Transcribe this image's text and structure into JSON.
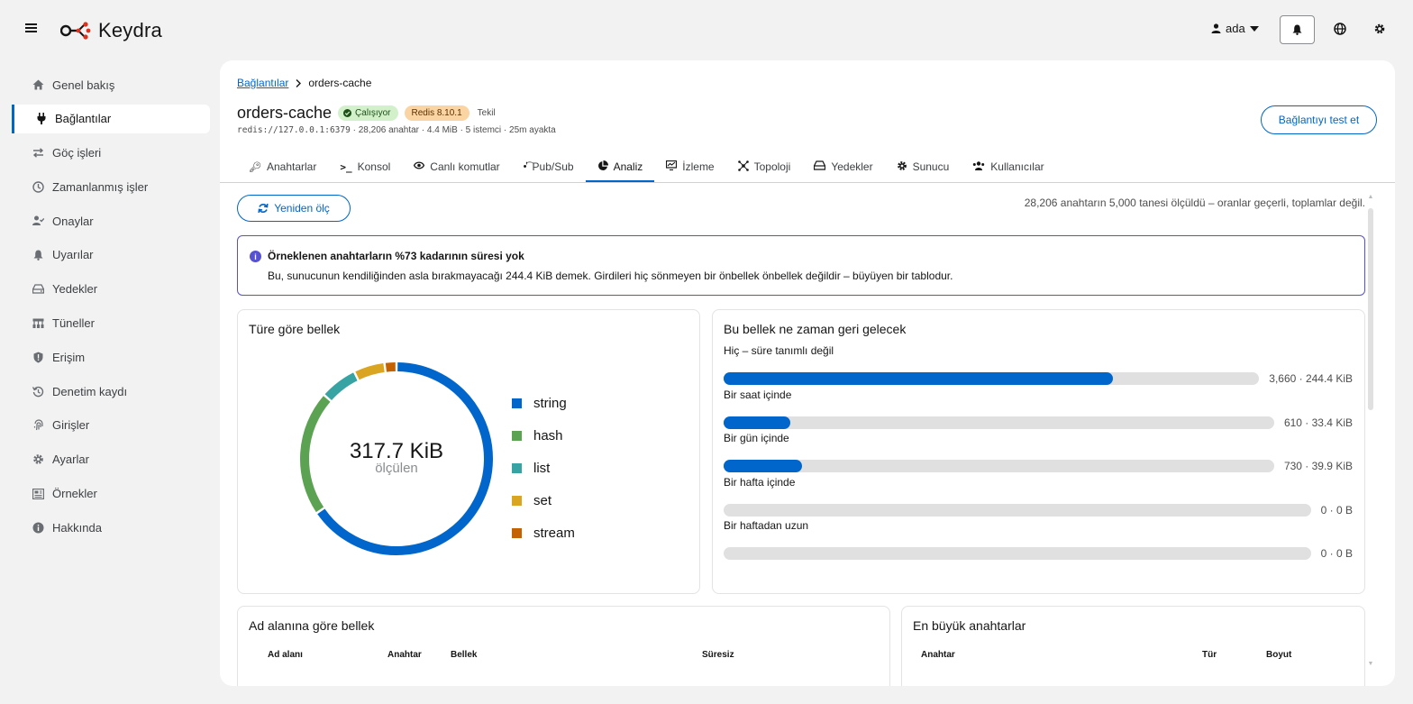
{
  "app": {
    "name": "Keydra"
  },
  "header": {
    "user": "ada"
  },
  "sidebar": {
    "items": [
      {
        "label": "Genel bakış",
        "icon": "home-icon"
      },
      {
        "label": "Bağlantılar",
        "icon": "plug-icon",
        "active": true
      },
      {
        "label": "Göç işleri",
        "icon": "exchange-icon"
      },
      {
        "label": "Zamanlanmış işler",
        "icon": "clock-icon"
      },
      {
        "label": "Onaylar",
        "icon": "user-check-icon"
      },
      {
        "label": "Uyarılar",
        "icon": "bell-icon"
      },
      {
        "label": "Yedekler",
        "icon": "hdd-icon"
      },
      {
        "label": "Tüneller",
        "icon": "network-icon"
      },
      {
        "label": "Erişim",
        "icon": "shield-icon"
      },
      {
        "label": "Denetim kaydı",
        "icon": "history-icon"
      },
      {
        "label": "Girişler",
        "icon": "fingerprint-icon"
      },
      {
        "label": "Ayarlar",
        "icon": "gear-icon"
      },
      {
        "label": "Örnekler",
        "icon": "newspaper-icon"
      },
      {
        "label": "Hakkında",
        "icon": "info-icon"
      }
    ]
  },
  "breadcrumb": {
    "parent": "Bağlantılar",
    "current": "orders-cache"
  },
  "connection": {
    "name": "orders-cache",
    "status": "Çalışıyor",
    "version": "Redis 8.10.1",
    "mode": "Tekil",
    "url": "redis://127.0.0.1:6379",
    "meta": " · 28,206 anahtar · 4.4 MiB · 5 istemci · 25m ayakta",
    "test_button": "Bağlantıyı test et"
  },
  "tabs": [
    {
      "label": "Anahtarlar",
      "icon": "key-icon"
    },
    {
      "label": "Konsol",
      "icon": "terminal-icon"
    },
    {
      "label": "Canlı komutlar",
      "icon": "eye-icon"
    },
    {
      "label": "Pub/Sub",
      "icon": "broadcast-icon"
    },
    {
      "label": "Analiz",
      "icon": "pie-icon",
      "active": true
    },
    {
      "label": "İzleme",
      "icon": "monitor-icon"
    },
    {
      "label": "Topoloji",
      "icon": "topology-icon"
    },
    {
      "label": "Yedekler",
      "icon": "hdd-icon"
    },
    {
      "label": "Sunucu",
      "icon": "gear-icon"
    },
    {
      "label": "Kullanıcılar",
      "icon": "users-icon"
    }
  ],
  "analysis": {
    "remeasure_button": "Yeniden ölç",
    "sample_note": "28,206 anahtarın 5,000 tanesi ölçüldü – oranlar geçerli, toplamlar değil.",
    "alert": {
      "title": "Örneklenen anahtarların %73 kadarının süresi yok",
      "body": "Bu, sunucunun kendiliğinden asla bırakmayacağı 244.4 KiB demek. Girdileri hiç sönmeyen bir önbellek önbellek değildir – büyüyen bir tablodur."
    },
    "type_card": {
      "title": "Türe göre bellek",
      "total": "317.7 KiB",
      "total_caption": "ölçülen"
    },
    "ttl_card": {
      "title": "Bu bellek ne zaman geri gelecek",
      "rows": [
        {
          "label": "Hiç – süre tanımlı değil",
          "value": "3,660 · 244.4 KiB",
          "fraction": 0.728
        },
        {
          "label": "Bir saat içinde",
          "value": "610 · 33.4 KiB",
          "fraction": 0.121
        },
        {
          "label": "Bir gün içinde",
          "value": "730 · 39.9 KiB",
          "fraction": 0.142
        },
        {
          "label": "Bir hafta içinde",
          "value": "0 · 0 B",
          "fraction": 0
        },
        {
          "label": "Bir haftadan uzun",
          "value": "0 · 0 B",
          "fraction": 0
        }
      ]
    },
    "namespace_card": {
      "title": "Ad alanına göre bellek",
      "columns": [
        "Ad alanı",
        "Anahtar",
        "Bellek",
        "Süresiz"
      ]
    },
    "biggest_card": {
      "title": "En büyük anahtarlar",
      "columns": [
        "Anahtar",
        "Tür",
        "Boyut"
      ]
    }
  },
  "chart_data": {
    "type": "pie",
    "title": "Türe göre bellek",
    "categories": [
      "string",
      "hash",
      "list",
      "set",
      "stream"
    ],
    "values": [
      65.5,
      21.0,
      6.3,
      5.2,
      2.0
    ],
    "colors": [
      "#0066cc",
      "#5ba352",
      "#37a3a3",
      "#daa520",
      "#c46100"
    ],
    "center_label": "317.7 KiB"
  }
}
